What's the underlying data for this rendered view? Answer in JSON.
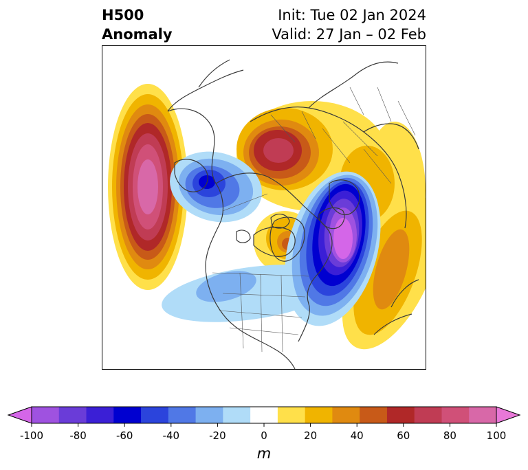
{
  "header": {
    "title_line1": "H500",
    "title_line2": "Anomaly",
    "init_text": "Init: Tue 02 Jan 2024",
    "valid_text": "Valid: 27 Jan – 02 Feb"
  },
  "colorbar": {
    "unit": "m",
    "ticks": [
      "-100",
      "-80",
      "-60",
      "-40",
      "-20",
      "0",
      "20",
      "40",
      "60",
      "80",
      "100"
    ],
    "range": [
      -100,
      100
    ],
    "colors": [
      "#d466e8",
      "#9f52e0",
      "#6a3cd8",
      "#3b1fd6",
      "#0000d0",
      "#2b44dc",
      "#5078e6",
      "#7db0f0",
      "#b0dcf8",
      "#ffffff",
      "#ffe04a",
      "#f0b400",
      "#e08a10",
      "#c85a18",
      "#b02828",
      "#c03c54",
      "#d05078",
      "#d868a8",
      "#e878d8"
    ]
  },
  "map": {
    "projection": "north-polar-stereographic",
    "features": [
      "coastlines",
      "country-borders",
      "us-state-borders"
    ]
  }
}
